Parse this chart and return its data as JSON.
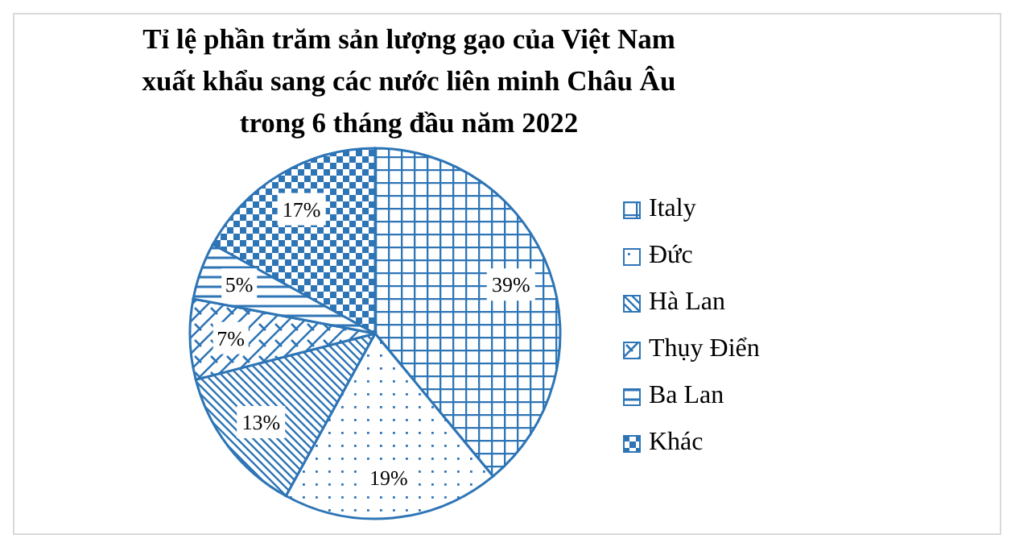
{
  "chart_data": {
    "type": "pie",
    "title": "Tỉ lệ phần trăm sản lượng gạo của Việt Nam xuất khẩu sang các nước liên minh Châu Âu trong 6 tháng đầu năm 2022",
    "categories": [
      "Italy",
      "Đức",
      "Hà Lan",
      "Thụy Điển",
      "Ba Lan",
      "Khác"
    ],
    "values": [
      39,
      19,
      13,
      7,
      5,
      17
    ],
    "colors": [
      "#2e75b6",
      "#2e75b6",
      "#2e75b6",
      "#2e75b6",
      "#2e75b6",
      "#2e75b6"
    ],
    "value_labels": [
      "39%",
      "19%",
      "13%",
      "7%",
      "5%",
      "17%"
    ],
    "legend": "right"
  }
}
